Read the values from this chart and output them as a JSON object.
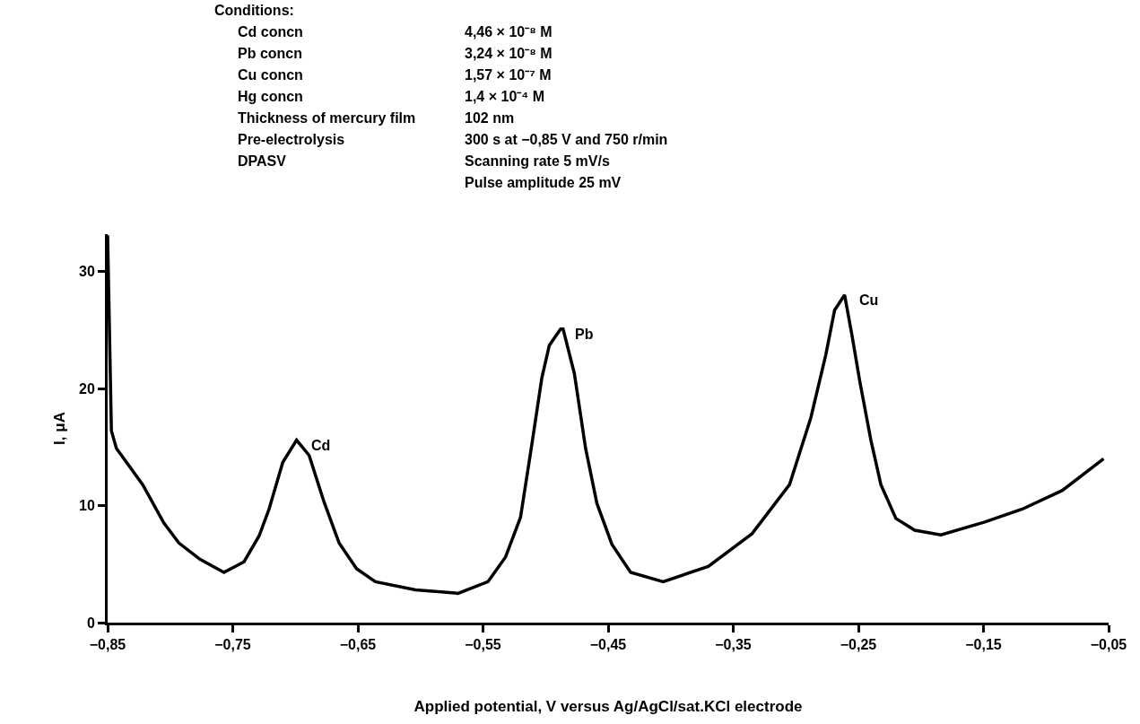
{
  "chart_data": {
    "type": "line",
    "title": "Conditions:",
    "xlabel": "Applied potential, V versus Ag/AgCl/sat.KCl electrode",
    "ylabel": "I, μA",
    "x": [
      -0.85,
      -0.847,
      -0.843,
      -0.822,
      -0.805,
      -0.793,
      -0.776,
      -0.757,
      -0.741,
      -0.729,
      -0.721,
      -0.71,
      -0.699,
      -0.689,
      -0.677,
      -0.665,
      -0.651,
      -0.636,
      -0.604,
      -0.581,
      -0.57,
      -0.546,
      -0.532,
      -0.52,
      -0.511,
      -0.503,
      -0.497,
      -0.488,
      -0.486,
      -0.477,
      -0.468,
      -0.459,
      -0.447,
      -0.432,
      -0.406,
      -0.37,
      -0.335,
      -0.305,
      -0.288,
      -0.276,
      -0.269,
      -0.261,
      -0.255,
      -0.249,
      -0.24,
      -0.232,
      -0.22,
      -0.205,
      -0.184,
      -0.149,
      -0.119,
      -0.087,
      -0.054
    ],
    "series": [
      {
        "color": "#000000",
        "values": [
          33.1,
          16.4,
          14.9,
          11.8,
          8.5,
          6.8,
          5.4,
          4.3,
          5.2,
          7.4,
          9.7,
          13.7,
          15.6,
          14.3,
          10.3,
          6.8,
          4.6,
          3.5,
          2.8,
          2.6,
          2.5,
          3.5,
          5.6,
          9.0,
          15.2,
          20.9,
          23.7,
          25.1,
          25.1,
          21.3,
          14.9,
          10.2,
          6.7,
          4.3,
          3.5,
          4.8,
          7.6,
          11.8,
          17.5,
          22.9,
          26.7,
          28.0,
          24.5,
          20.7,
          15.6,
          11.8,
          8.9,
          7.9,
          7.5,
          8.6,
          9.7,
          11.3,
          14.0
        ]
      }
    ],
    "xlim": [
      -0.85,
      -0.05
    ],
    "xticks": [
      {
        "value": -0.85,
        "label": "−0,85"
      },
      {
        "value": -0.75,
        "label": "−0,75"
      },
      {
        "value": -0.65,
        "label": "−0,65"
      },
      {
        "value": -0.55,
        "label": "−0,55"
      },
      {
        "value": -0.45,
        "label": "−0,45"
      },
      {
        "value": -0.35,
        "label": "−0,35"
      },
      {
        "value": -0.25,
        "label": "−0,25"
      },
      {
        "value": -0.15,
        "label": "−0,15"
      },
      {
        "value": -0.05,
        "label": "−0,05"
      }
    ],
    "ylim": [
      0,
      33.2
    ],
    "yticks": [
      0,
      10,
      20,
      30
    ],
    "line_style": "solid",
    "marker": "none",
    "annotations": [
      {
        "text": "Cd",
        "x": -0.699,
        "y": 15.6
      },
      {
        "text": "Pb",
        "x": -0.488,
        "y": 25.1
      },
      {
        "text": "Cu",
        "x": -0.261,
        "y": 28.0
      },
      "Cd concn",
      "4,46 × 10⁻⁸ M",
      "Pb concn",
      "3,24 × 10⁻⁸ M",
      "Cu concn",
      "1,57 × 10⁻⁷ M",
      "Hg concn",
      "1,4 × 10⁻⁴ M",
      "Thickness of mercury film",
      "102 nm",
      "Pre-electrolysis",
      "300 s at −0,85 V and 750 r/min",
      "DPASV",
      "Scanning rate 5 mV/s",
      "Pulse amplitude 25 mV"
    ]
  }
}
